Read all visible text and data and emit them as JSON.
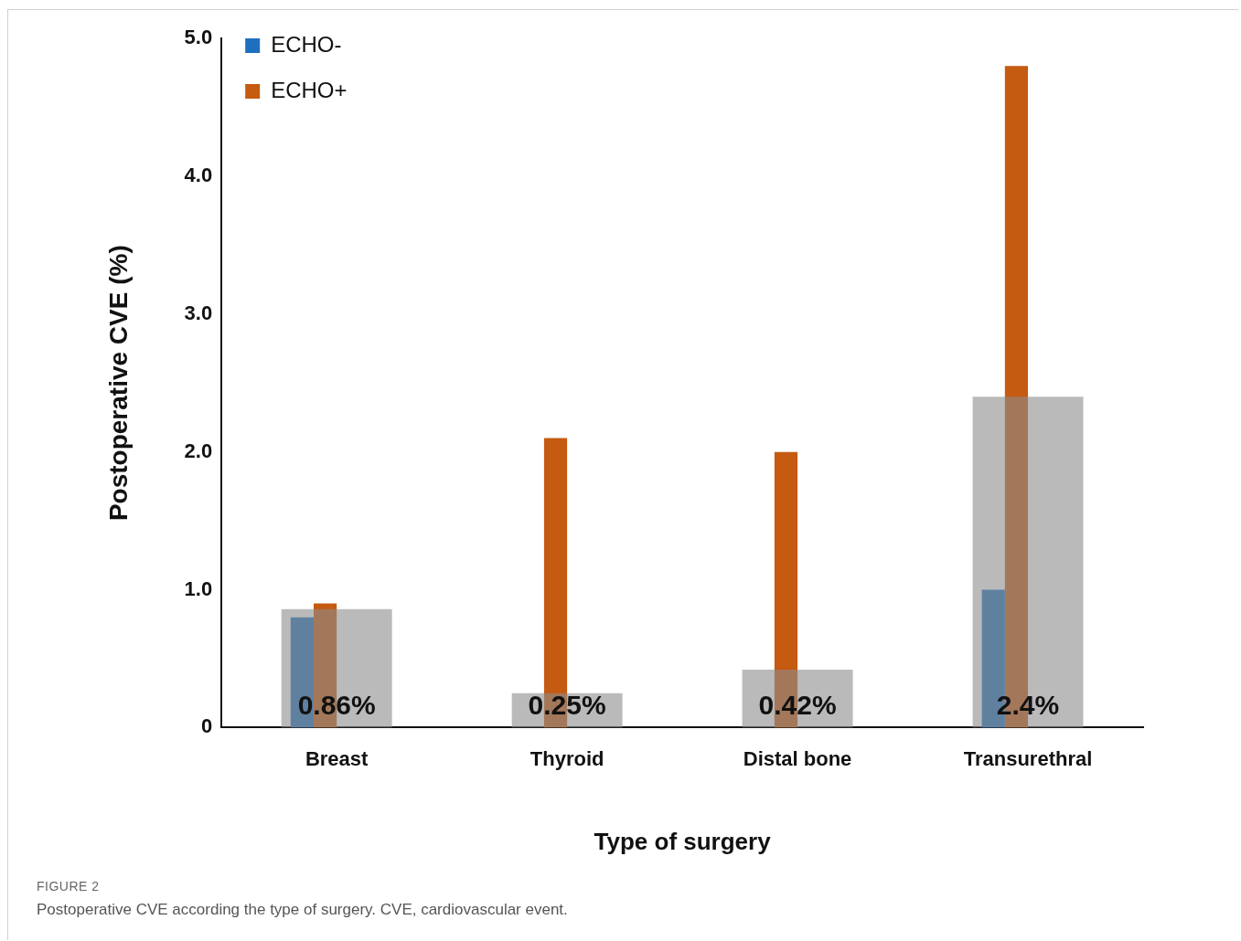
{
  "chart_data": {
    "type": "bar",
    "xlabel": "Type of surgery",
    "ylabel": "Postoperative CVE (%)",
    "categories": [
      "Breast",
      "Thyroid",
      "Distal bone",
      "Transurethral"
    ],
    "series": [
      {
        "name": "ECHO-",
        "color": "#1f6fbf",
        "values": [
          0.8,
          null,
          null,
          1.0
        ]
      },
      {
        "name": "ECHO+",
        "color": "#c55a11",
        "values": [
          0.9,
          2.1,
          2.0,
          4.8
        ]
      },
      {
        "color": "#8c8c8c",
        "values": [
          0.86,
          0.25,
          0.42,
          2.4
        ],
        "value_labels": [
          "0.86%",
          "0.25%",
          "0.42%",
          "2.4%"
        ]
      }
    ],
    "ylim": [
      0,
      5
    ],
    "yticks": [
      {
        "value": 0,
        "label": "0"
      },
      {
        "value": 1,
        "label": "1.0"
      },
      {
        "value": 2,
        "label": "2.0"
      },
      {
        "value": 3,
        "label": "3.0"
      },
      {
        "value": 4,
        "label": "4.0"
      },
      {
        "value": 5,
        "label": "5.0"
      }
    ],
    "grid": false,
    "legend": "top left",
    "annotations": [
      "FIGURE 2",
      "Postoperative CVE according the type of surgery. CVE, cardiovascular event."
    ]
  }
}
